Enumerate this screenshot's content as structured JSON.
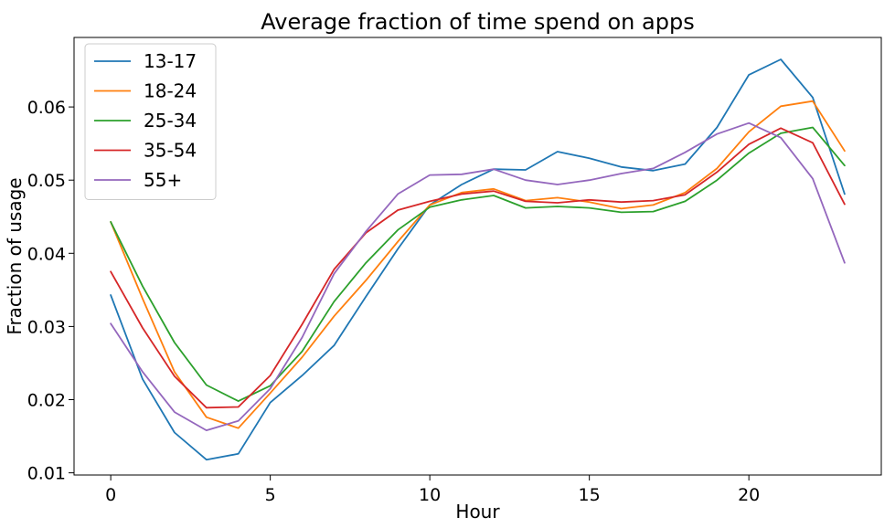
{
  "chart_data": {
    "type": "line",
    "title": "Average fraction of time spend on apps",
    "xlabel": "Hour",
    "ylabel": "Fraction of usage",
    "xlim": [
      -1.15,
      24.15
    ],
    "ylim": [
      0.0097,
      0.0695
    ],
    "xticks": [
      0,
      5,
      10,
      15,
      20
    ],
    "xtick_labels": [
      "0",
      "5",
      "10",
      "15",
      "20"
    ],
    "yticks": [
      0.01,
      0.02,
      0.03,
      0.04,
      0.05,
      0.06
    ],
    "ytick_labels": [
      "0.01",
      "0.02",
      "0.03",
      "0.04",
      "0.05",
      "0.06"
    ],
    "grid": false,
    "legend_position": "top-left",
    "x": [
      0,
      1,
      2,
      3,
      4,
      5,
      6,
      7,
      8,
      9,
      10,
      11,
      12,
      13,
      14,
      15,
      16,
      17,
      18,
      19,
      20,
      21,
      22,
      23
    ],
    "series": [
      {
        "name": "13-17",
        "color": "#1f77b4",
        "values": [
          0.0343,
          0.0228,
          0.0155,
          0.0118,
          0.0126,
          0.0196,
          0.0233,
          0.0274,
          0.0341,
          0.0406,
          0.0466,
          0.0494,
          0.0515,
          0.0514,
          0.0539,
          0.053,
          0.0518,
          0.0513,
          0.0522,
          0.0572,
          0.0644,
          0.0665,
          0.0613,
          0.0481
        ]
      },
      {
        "name": "18-24",
        "color": "#ff7f0e",
        "values": [
          0.0443,
          0.0338,
          0.0238,
          0.0176,
          0.0161,
          0.0209,
          0.0258,
          0.0314,
          0.0363,
          0.0416,
          0.0466,
          0.0483,
          0.0488,
          0.0472,
          0.0476,
          0.047,
          0.0461,
          0.0466,
          0.0483,
          0.0516,
          0.0566,
          0.0601,
          0.0608,
          0.054
        ]
      },
      {
        "name": "25-34",
        "color": "#2ca02c",
        "values": [
          0.0443,
          0.0355,
          0.0278,
          0.022,
          0.0198,
          0.0219,
          0.0266,
          0.0334,
          0.0387,
          0.0432,
          0.0463,
          0.0473,
          0.0479,
          0.0462,
          0.0464,
          0.0462,
          0.0456,
          0.0457,
          0.0471,
          0.05,
          0.0537,
          0.0564,
          0.0572,
          0.052
        ]
      },
      {
        "name": "35-54",
        "color": "#d62728",
        "values": [
          0.0375,
          0.0298,
          0.0232,
          0.0189,
          0.019,
          0.0233,
          0.0303,
          0.0378,
          0.0428,
          0.0459,
          0.0471,
          0.0481,
          0.0485,
          0.0471,
          0.0469,
          0.0473,
          0.047,
          0.0472,
          0.048,
          0.0511,
          0.0549,
          0.0571,
          0.0551,
          0.0467
        ]
      },
      {
        "name": "55+",
        "color": "#9467bd",
        "values": [
          0.0304,
          0.0238,
          0.0183,
          0.0158,
          0.0171,
          0.0215,
          0.0285,
          0.0372,
          0.043,
          0.0481,
          0.0507,
          0.0508,
          0.0515,
          0.05,
          0.0494,
          0.05,
          0.0509,
          0.0516,
          0.0538,
          0.0563,
          0.0578,
          0.0558,
          0.0502,
          0.0387
        ]
      }
    ]
  }
}
